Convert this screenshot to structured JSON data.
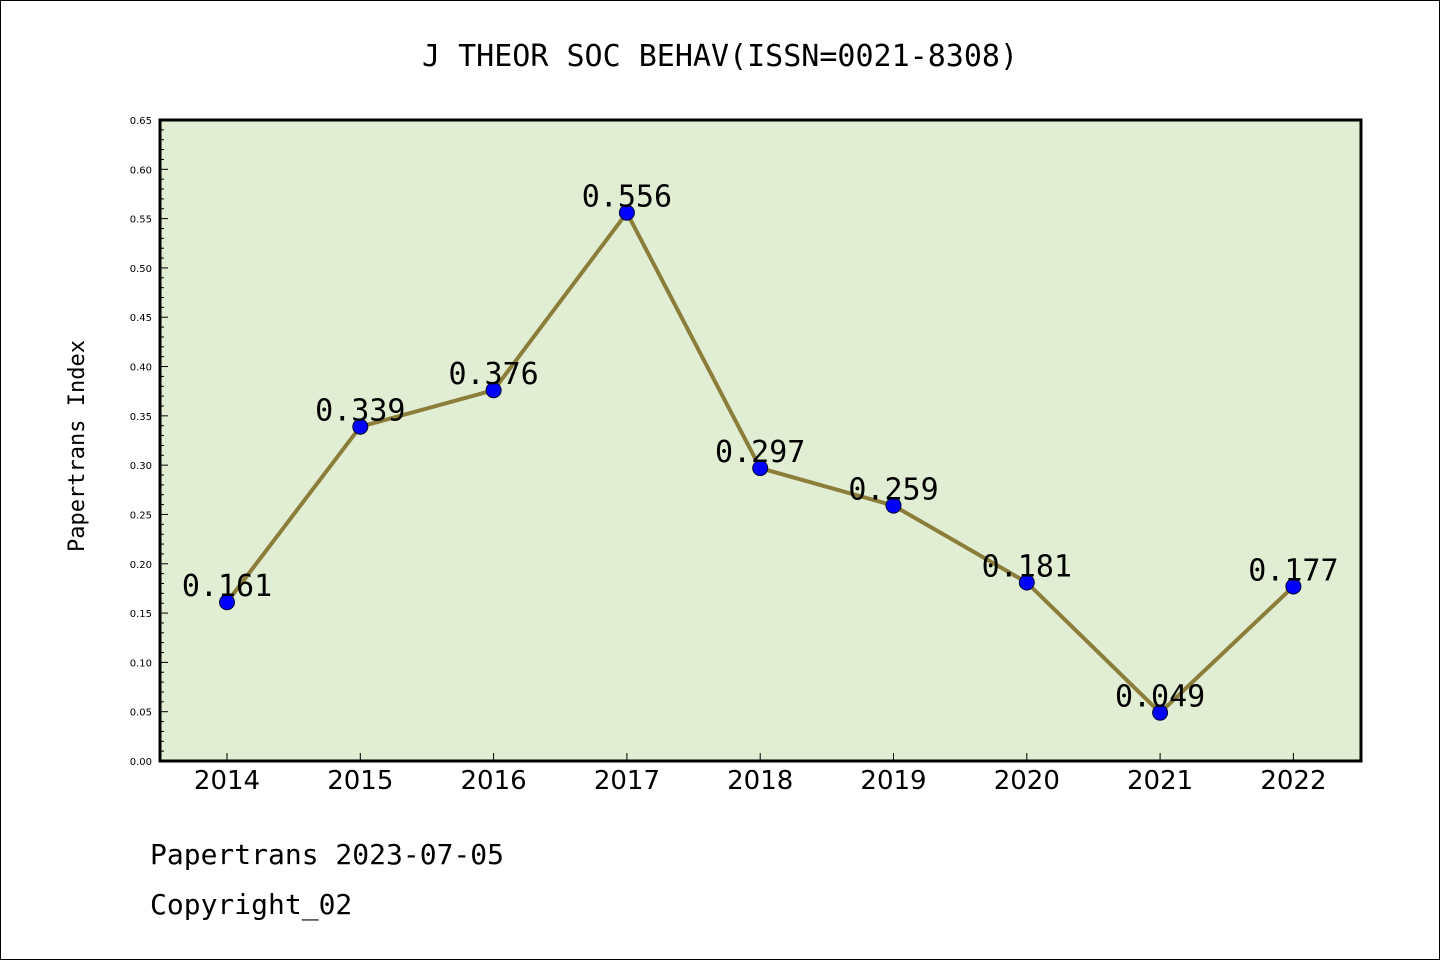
{
  "chart_data": {
    "type": "line",
    "title": "J THEOR SOC BEHAV(ISSN=0021-8308)",
    "xlabel": "",
    "ylabel": "Papertrans Index",
    "categories": [
      "2014",
      "2015",
      "2016",
      "2017",
      "2018",
      "2019",
      "2020",
      "2021",
      "2022"
    ],
    "values": [
      0.161,
      0.339,
      0.376,
      0.556,
      0.297,
      0.259,
      0.181,
      0.049,
      0.177
    ],
    "data_labels": [
      "0.161",
      "0.339",
      "0.376",
      "0.556",
      "0.297",
      "0.259",
      "0.181",
      "0.049",
      "0.177"
    ],
    "ylim": [
      0,
      0.65
    ],
    "yticks": [
      "0.00",
      "0.05",
      "0.10",
      "0.15",
      "0.20",
      "0.25",
      "0.30",
      "0.35",
      "0.40",
      "0.45",
      "0.50",
      "0.55",
      "0.60",
      "0.65"
    ],
    "grid": false,
    "colors": {
      "plot_background": "#e1eed4",
      "line": "#8b7d3a",
      "marker": "#0000ff"
    }
  },
  "footer": {
    "line1": "Papertrans 2023-07-05",
    "line2": "Copyright_02"
  }
}
